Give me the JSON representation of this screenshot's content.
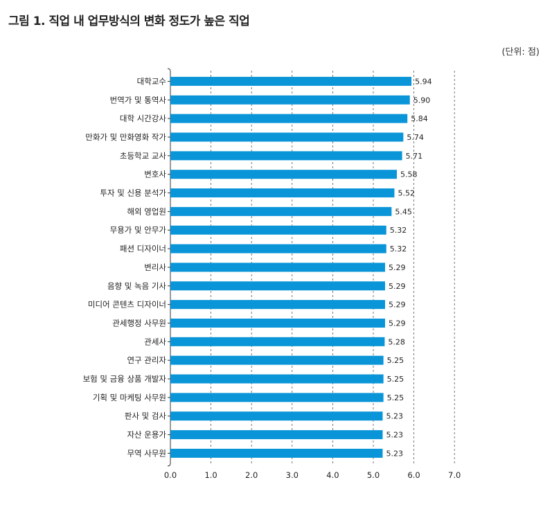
{
  "title": "그림 1. 직업 내 업무방식의 변화 정도가 높은 직업",
  "unit_label": "(단위: 점)",
  "chart_data": {
    "type": "bar",
    "orientation": "horizontal",
    "categories": [
      "대학교수",
      "번역가 및 통역사",
      "대학 시간강사",
      "만화가 및 만화영화 작가",
      "초등학교 교사",
      "변호사",
      "투자 및 신용 분석가",
      "해외 영업원",
      "무용가 및 안무가",
      "패션 디자이너",
      "변리사",
      "음향 및 녹음 기사",
      "미디어 콘텐츠 디자이너",
      "관세행정 사무원",
      "관세사",
      "연구 관리자",
      "보험 및 금융 상품 개발자",
      "기획 및 마케팅 사무원",
      "판사 및 검사",
      "자산 운용가",
      "무역 사무원"
    ],
    "values": [
      5.94,
      5.9,
      5.84,
      5.74,
      5.71,
      5.58,
      5.52,
      5.45,
      5.32,
      5.32,
      5.29,
      5.29,
      5.29,
      5.29,
      5.28,
      5.25,
      5.25,
      5.25,
      5.23,
      5.23,
      5.23
    ],
    "value_labels": [
      "5.94",
      "5.90",
      "5.84",
      "5.74",
      "5.71",
      "5.58",
      "5.52",
      "5.45",
      "5.32",
      "5.32",
      "5.29",
      "5.29",
      "5.29",
      "5.29",
      "5.28",
      "5.25",
      "5.25",
      "5.25",
      "5.23",
      "5.23",
      "5.23"
    ],
    "xlim": [
      0,
      7
    ],
    "xticks": [
      "0.0",
      "1.0",
      "2.0",
      "3.0",
      "4.0",
      "5.0",
      "6.0",
      "7.0"
    ],
    "bar_color": "#0a95d8",
    "grid": "vertical dashed"
  }
}
